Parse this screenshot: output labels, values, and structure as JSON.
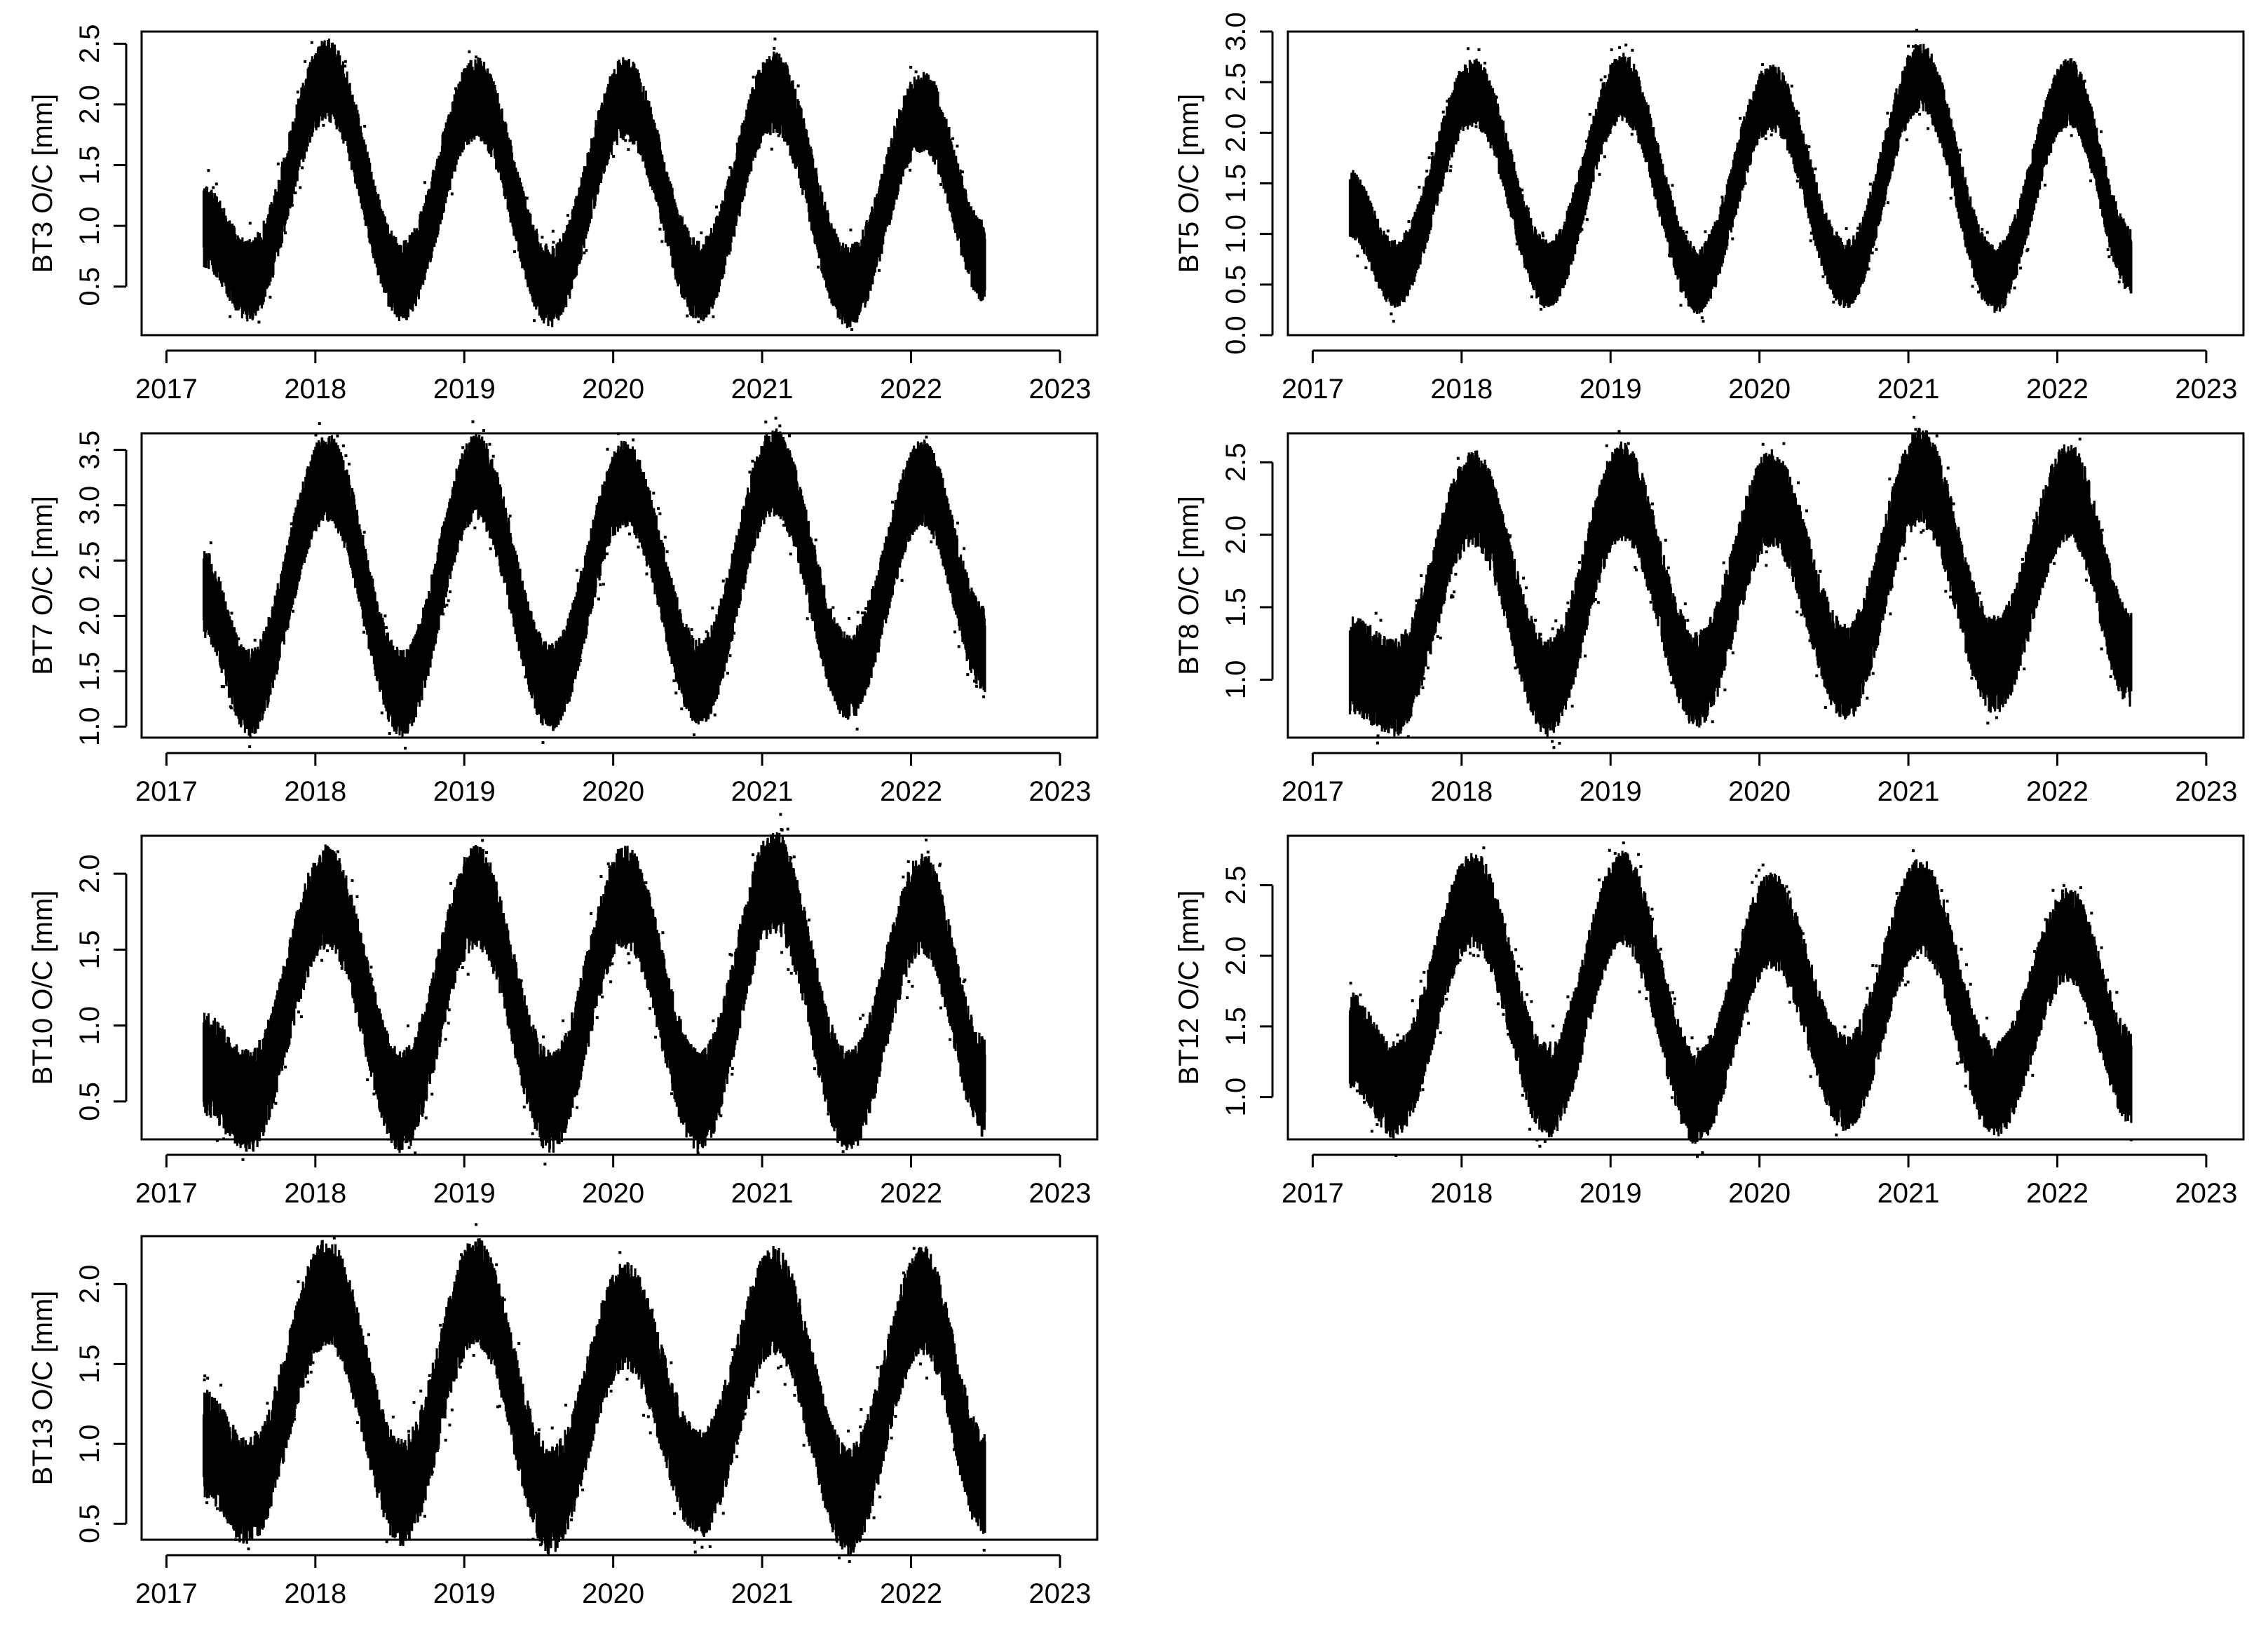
{
  "chart_data": [
    {
      "type": "scatter",
      "series": [
        {
          "values": []
        }
      ],
      "station": "BT3",
      "ylabel": "BT3 O/C [mm]",
      "xlim": [
        "2016-11-01",
        "2023-04-01"
      ],
      "xticks": [
        "2017",
        "2018",
        "2019",
        "2020",
        "2021",
        "2022",
        "2023"
      ],
      "ylim": [
        0.1,
        2.6
      ],
      "yticks": [
        "0.5",
        "1.0",
        "1.5",
        "2.0",
        "2.5"
      ],
      "observed_range": [
        "2017-04-01",
        "2022-06-30"
      ],
      "annual_peaks": [
        2.2,
        2.05,
        2.05,
        2.1,
        1.95
      ],
      "annual_troughs": [
        0.55,
        0.5,
        0.55,
        0.5,
        0.6
      ],
      "scatter_band": 0.3,
      "start_value": 1.0,
      "end_value": 0.7,
      "color": "#000000",
      "grid": false
    },
    {
      "type": "scatter",
      "series": [
        {
          "values": []
        }
      ],
      "station": "BT5",
      "ylabel": "BT5 O/C [mm]",
      "xlim": [
        "2016-11-01",
        "2023-04-01"
      ],
      "xticks": [
        "2017",
        "2018",
        "2019",
        "2020",
        "2021",
        "2022",
        "2023"
      ],
      "ylim": [
        0.0,
        3.0
      ],
      "yticks": [
        "0.0",
        "0.5",
        "1.0",
        "1.5",
        "2.0",
        "2.5",
        "3.0"
      ],
      "observed_range": [
        "2017-04-01",
        "2022-06-30"
      ],
      "annual_peaks": [
        2.4,
        2.45,
        2.35,
        2.55,
        2.4
      ],
      "annual_troughs": [
        0.6,
        0.55,
        0.6,
        0.55,
        0.55
      ],
      "scatter_band": 0.3,
      "start_value": 1.3,
      "end_value": 0.75,
      "color": "#000000",
      "grid": false
    },
    {
      "type": "scatter",
      "series": [
        {
          "values": []
        }
      ],
      "station": "BT7",
      "ylabel": "BT7 O/C [mm]",
      "xlim": [
        "2016-11-01",
        "2023-04-01"
      ],
      "xticks": [
        "2017",
        "2018",
        "2019",
        "2020",
        "2021",
        "2022",
        "2023"
      ],
      "ylim": [
        0.9,
        3.65
      ],
      "yticks": [
        "1.0",
        "1.5",
        "2.0",
        "2.5",
        "3.0",
        "3.5"
      ],
      "observed_range": [
        "2017-04-01",
        "2022-06-30"
      ],
      "annual_peaks": [
        3.25,
        3.25,
        3.2,
        3.3,
        3.2
      ],
      "annual_troughs": [
        1.3,
        1.35,
        1.4,
        1.45,
        1.55
      ],
      "scatter_band": 0.35,
      "start_value": 2.2,
      "end_value": 1.7,
      "color": "#000000",
      "grid": false
    },
    {
      "type": "scatter",
      "series": [
        {
          "values": []
        }
      ],
      "station": "BT8",
      "ylabel": "BT8 O/C [mm]",
      "xlim": [
        "2016-11-01",
        "2023-04-01"
      ],
      "xticks": [
        "2017",
        "2018",
        "2019",
        "2020",
        "2021",
        "2022",
        "2023"
      ],
      "ylim": [
        0.6,
        2.7
      ],
      "yticks": [
        "1.0",
        "1.5",
        "2.0",
        "2.5"
      ],
      "observed_range": [
        "2017-04-01",
        "2022-06-30"
      ],
      "annual_peaks": [
        2.25,
        2.3,
        2.25,
        2.4,
        2.3
      ],
      "annual_troughs": [
        0.95,
        1.0,
        1.05,
        1.1,
        1.15
      ],
      "scatter_band": 0.3,
      "start_value": 1.1,
      "end_value": 1.15,
      "color": "#000000",
      "grid": false
    },
    {
      "type": "scatter",
      "series": [
        {
          "values": []
        }
      ],
      "station": "BT10",
      "ylabel": "BT10 O/C [mm]",
      "xlim": [
        "2016-11-01",
        "2023-04-01"
      ],
      "xticks": [
        "2017",
        "2018",
        "2019",
        "2020",
        "2021",
        "2022",
        "2023"
      ],
      "ylim": [
        0.25,
        2.25
      ],
      "yticks": [
        "0.5",
        "1.0",
        "1.5",
        "2.0"
      ],
      "observed_range": [
        "2017-04-01",
        "2022-06-30"
      ],
      "annual_peaks": [
        1.85,
        1.85,
        1.85,
        1.95,
        1.8
      ],
      "annual_troughs": [
        0.5,
        0.5,
        0.5,
        0.5,
        0.55
      ],
      "scatter_band": 0.3,
      "start_value": 0.75,
      "end_value": 0.6,
      "color": "#000000",
      "grid": false
    },
    {
      "type": "scatter",
      "series": [
        {
          "values": []
        }
      ],
      "station": "BT12",
      "ylabel": "BT12 O/C [mm]",
      "xlim": [
        "2016-11-01",
        "2023-04-01"
      ],
      "xticks": [
        "2017",
        "2018",
        "2019",
        "2020",
        "2021",
        "2022",
        "2023"
      ],
      "ylim": [
        0.7,
        2.85
      ],
      "yticks": [
        "1.0",
        "1.5",
        "2.0",
        "2.5"
      ],
      "observed_range": [
        "2017-04-01",
        "2022-06-30"
      ],
      "annual_peaks": [
        2.4,
        2.4,
        2.25,
        2.35,
        2.15
      ],
      "annual_troughs": [
        1.05,
        1.0,
        1.1,
        1.05,
        1.1
      ],
      "scatter_band": 0.3,
      "start_value": 1.4,
      "end_value": 1.15,
      "color": "#000000",
      "grid": false
    },
    {
      "type": "scatter",
      "series": [
        {
          "values": []
        }
      ],
      "station": "BT13",
      "ylabel": "BT13 O/C [mm]",
      "xlim": [
        "2016-11-01",
        "2023-04-01"
      ],
      "xticks": [
        "2017",
        "2018",
        "2019",
        "2020",
        "2021",
        "2022",
        "2023"
      ],
      "ylim": [
        0.4,
        2.3
      ],
      "yticks": [
        "0.5",
        "1.0",
        "1.5",
        "2.0"
      ],
      "observed_range": [
        "2017-04-01",
        "2022-06-30"
      ],
      "annual_peaks": [
        1.95,
        1.95,
        1.8,
        1.9,
        1.9
      ],
      "annual_troughs": [
        0.7,
        0.65,
        0.75,
        0.65,
        0.7
      ],
      "scatter_band": 0.3,
      "start_value": 1.0,
      "end_value": 0.75,
      "color": "#000000",
      "grid": false
    }
  ]
}
